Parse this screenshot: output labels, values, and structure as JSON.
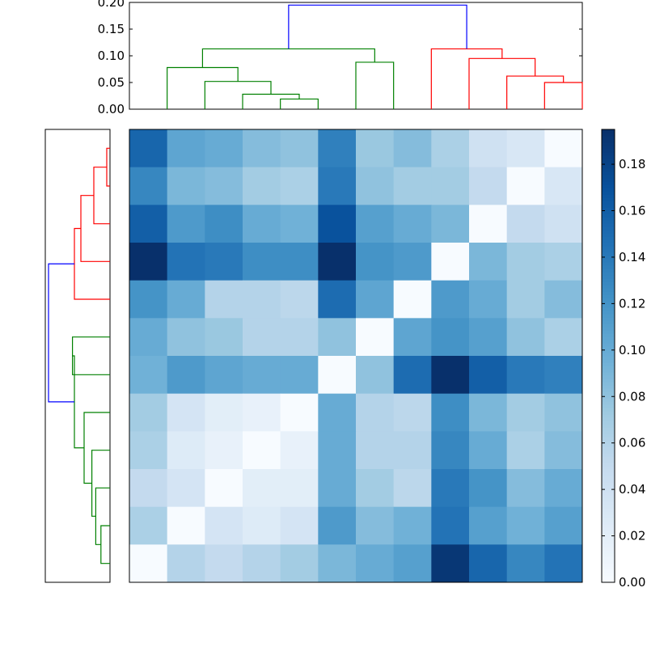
{
  "chart_data": [
    {
      "type": "heatmap",
      "title": "",
      "xlabel": "",
      "ylabel": "",
      "rows": 12,
      "cols": 12,
      "color_scale": {
        "colormap": "Blues",
        "min": 0.0,
        "max": 0.195,
        "ticks": [
          0.0,
          0.02,
          0.04,
          0.06,
          0.08,
          0.1,
          0.12,
          0.14,
          0.16,
          0.18
        ],
        "tick_labels": [
          "0.00",
          "0.02",
          "0.04",
          "0.06",
          "0.08",
          "0.10",
          "0.12",
          "0.14",
          "0.16",
          "0.18"
        ]
      },
      "values": [
        [
          0.155,
          0.105,
          0.1,
          0.085,
          0.08,
          0.135,
          0.075,
          0.085,
          0.065,
          0.04,
          0.03,
          0.0
        ],
        [
          0.13,
          0.09,
          0.085,
          0.07,
          0.065,
          0.14,
          0.08,
          0.07,
          0.07,
          0.05,
          0.0,
          0.03
        ],
        [
          0.16,
          0.115,
          0.125,
          0.1,
          0.095,
          0.17,
          0.11,
          0.1,
          0.09,
          0.0,
          0.05,
          0.04
        ],
        [
          0.195,
          0.145,
          0.14,
          0.125,
          0.125,
          0.195,
          0.12,
          0.115,
          0.0,
          0.09,
          0.07,
          0.065
        ],
        [
          0.12,
          0.1,
          0.06,
          0.06,
          0.055,
          0.15,
          0.105,
          0.0,
          0.115,
          0.1,
          0.07,
          0.085
        ],
        [
          0.1,
          0.08,
          0.075,
          0.06,
          0.06,
          0.08,
          0.0,
          0.105,
          0.12,
          0.11,
          0.08,
          0.065
        ],
        [
          0.095,
          0.115,
          0.105,
          0.1,
          0.1,
          0.0,
          0.08,
          0.15,
          0.195,
          0.16,
          0.14,
          0.135
        ],
        [
          0.07,
          0.035,
          0.02,
          0.015,
          0.0,
          0.1,
          0.06,
          0.055,
          0.125,
          0.09,
          0.07,
          0.08
        ],
        [
          0.065,
          0.025,
          0.015,
          0.0,
          0.015,
          0.1,
          0.06,
          0.06,
          0.13,
          0.1,
          0.065,
          0.085
        ],
        [
          0.05,
          0.035,
          0.0,
          0.02,
          0.02,
          0.1,
          0.07,
          0.055,
          0.14,
          0.12,
          0.085,
          0.1
        ],
        [
          0.065,
          0.0,
          0.035,
          0.025,
          0.035,
          0.115,
          0.085,
          0.095,
          0.145,
          0.11,
          0.095,
          0.11
        ],
        [
          0.0,
          0.06,
          0.05,
          0.06,
          0.07,
          0.09,
          0.1,
          0.11,
          0.19,
          0.155,
          0.13,
          0.145
        ]
      ]
    },
    {
      "type": "dendrogram",
      "orientation": "top",
      "y_range": [
        0.0,
        0.2
      ],
      "y_ticks": [
        0.0,
        0.05,
        0.1,
        0.15,
        0.2
      ],
      "y_tick_labels": [
        "0.00",
        "0.05",
        "0.10",
        "0.15",
        "0.20"
      ],
      "leaf_count": 12,
      "links": [
        {
          "a": 4,
          "b": 5,
          "height": 0.019,
          "color": "#008000"
        },
        {
          "a": 3,
          "b": 4.5,
          "height": 0.028,
          "color": "#008000"
        },
        {
          "a": 2,
          "b": 3.75,
          "height": 0.052,
          "color": "#008000"
        },
        {
          "a": 1,
          "b": 2.875,
          "height": 0.078,
          "color": "#008000"
        },
        {
          "a": 6,
          "b": 7,
          "height": 0.088,
          "color": "#008000"
        },
        {
          "a": 1.9375,
          "b": 6.5,
          "height": 0.113,
          "color": "#008000"
        },
        {
          "a": 11,
          "b": 12,
          "height": 0.05,
          "color": "#ff0000"
        },
        {
          "a": 10,
          "b": 11.5,
          "height": 0.062,
          "color": "#ff0000"
        },
        {
          "a": 9,
          "b": 10.75,
          "height": 0.095,
          "color": "#ff0000"
        },
        {
          "a": 8,
          "b": 9.875,
          "height": 0.113,
          "color": "#ff0000"
        },
        {
          "a": 4.21875,
          "b": 8.9375,
          "height": 0.195,
          "color": "#0000ff"
        }
      ]
    },
    {
      "type": "dendrogram",
      "orientation": "left",
      "leaf_count": 12,
      "links": [
        {
          "a": 0,
          "b": 1,
          "depth": 0.95,
          "color": "#ff0000"
        },
        {
          "a": 0.5,
          "b": 2,
          "depth": 0.75,
          "color": "#ff0000"
        },
        {
          "a": 1.25,
          "b": 3,
          "depth": 0.55,
          "color": "#ff0000"
        },
        {
          "a": 2.125,
          "b": 4,
          "depth": 0.45,
          "color": "#ff0000"
        },
        {
          "a": 5,
          "b": 6,
          "depth": 0.42,
          "color": "#008000"
        },
        {
          "a": 10,
          "b": 11,
          "depth": 0.86,
          "color": "#008000"
        },
        {
          "a": 9,
          "b": 10.5,
          "depth": 0.78,
          "color": "#008000"
        },
        {
          "a": 8,
          "b": 9.75,
          "depth": 0.72,
          "color": "#008000"
        },
        {
          "a": 7,
          "b": 8.875,
          "depth": 0.6,
          "color": "#008000"
        },
        {
          "a": 5.5,
          "b": 7.9375,
          "depth": 0.45,
          "color": "#008000"
        },
        {
          "a": 3.0625,
          "b": 6.71875,
          "depth": 0.05,
          "color": "#0000ff"
        }
      ]
    }
  ]
}
